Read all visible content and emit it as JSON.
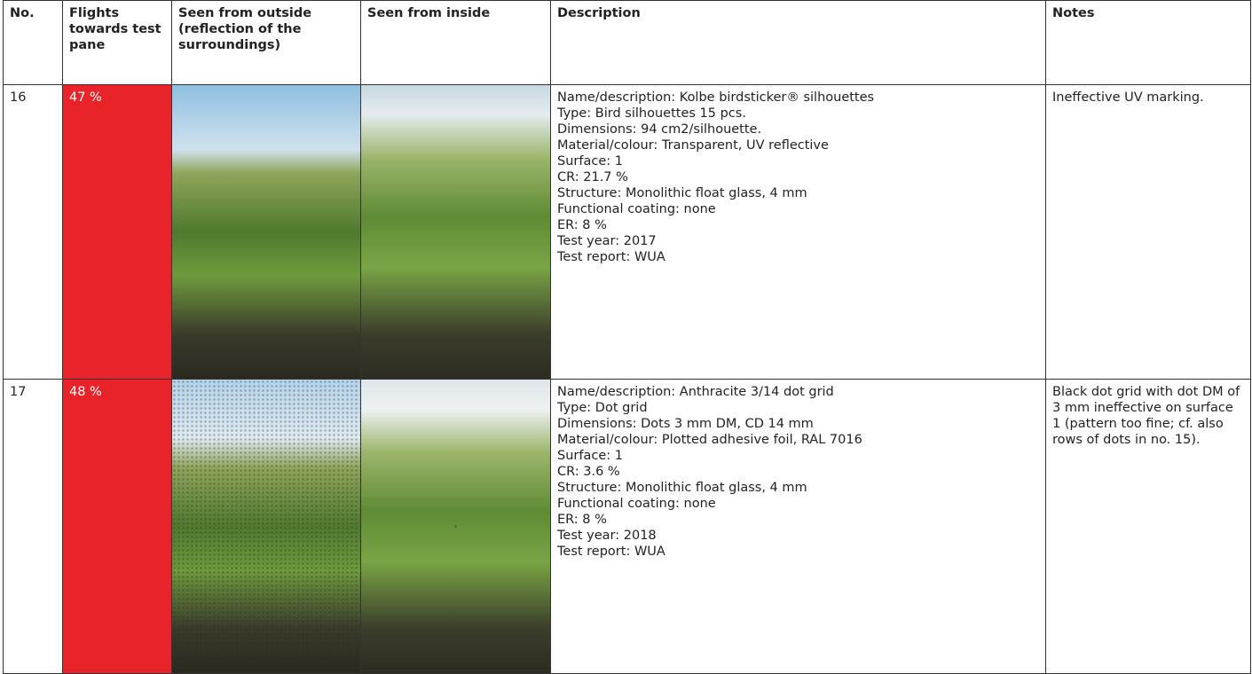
{
  "table": {
    "header": [
      "No.",
      "Flights towards test pane",
      "Seen from outside (reflection of the surroundings)",
      "Seen from inside",
      "Description",
      "Notes"
    ],
    "rows": [
      {
        "no": "16",
        "flights": "47 %",
        "description": [
          "Name/description: Kolbe birdsticker® silhouettes",
          "Type: Bird silhouettes 15 pcs.",
          "Dimensions: 94 cm2/silhouette.",
          "Material/colour: Transparent, UV reflective",
          "Surface: 1",
          "CR: 21.7 %",
          "Structure: Monolithic float glass, 4 mm",
          "Functional coating: none",
          "ER: 8 %",
          "Test year: 2017",
          "Test report: WUA"
        ],
        "notes": "Ineffective UV marking."
      },
      {
        "no": "17",
        "flights": "48 %",
        "description": [
          "Name/description: Anthracite 3/14 dot grid",
          "Type: Dot grid",
          "Dimensions: Dots 3 mm DM, CD 14 mm",
          "Material/colour: Plotted adhesive foil, RAL 7016",
          "Surface: 1",
          "CR: 3.6 %",
          "Structure: Monolithic float glass, 4 mm",
          "Functional coating: none",
          "ER: 8 %",
          "Test year: 2018",
          "Test report: WUA"
        ],
        "notes": "Black dot grid with dot DM of 3 mm ineffective on surface 1 (pattern too fine; cf. also rows of dots in no. 15)."
      }
    ]
  }
}
